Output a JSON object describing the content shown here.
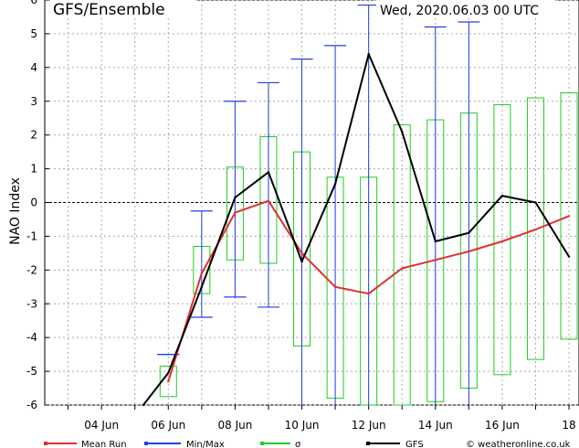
{
  "chart_data": {
    "type": "line",
    "title": "GFS/Ensemble",
    "timestamp": "Wed, 2020.06.03   00 UTC",
    "ylabel": "NAO Index",
    "ylim": [
      -6,
      6
    ],
    "yticks": [
      -6,
      -5,
      -4,
      -3,
      -2,
      -1,
      0,
      1,
      2,
      3,
      4,
      5,
      6
    ],
    "xlim": [
      2.3,
      18.3
    ],
    "xtick_values": [
      4,
      6,
      8,
      10,
      12,
      14,
      16,
      18
    ],
    "xtick_labels": [
      "04 Jun",
      "06 Jun",
      "08 Jun",
      "10 Jun",
      "12 Jun",
      "14 Jun",
      "16 Jun",
      "18"
    ],
    "grid": true,
    "legend_position": "bottom",
    "x": [
      3,
      4,
      5,
      6,
      7,
      8,
      9,
      10,
      11,
      12,
      13,
      14,
      15,
      16,
      17,
      18
    ],
    "series": [
      {
        "name": "Mean Run",
        "color": "#e03030",
        "x": [
          6,
          7,
          8,
          9,
          10,
          11,
          12,
          13,
          14,
          15,
          16,
          17,
          18
        ],
        "values": [
          -5.3,
          -2.1,
          -0.3,
          0.05,
          -1.5,
          -2.5,
          -2.7,
          -1.95,
          -1.7,
          -1.45,
          -1.15,
          -0.8,
          -0.4
        ]
      },
      {
        "name": "GFS",
        "color": "#000000",
        "x": [
          5.25,
          6,
          7,
          8,
          9,
          10,
          11,
          12,
          13,
          14,
          15,
          16,
          17,
          18
        ],
        "values": [
          -6,
          -5.05,
          -2.5,
          0.15,
          0.9,
          -1.75,
          0.55,
          4.4,
          2.1,
          -1.15,
          -0.9,
          0.2,
          0.0,
          -1.6
        ]
      }
    ],
    "minmax": {
      "name": "Min/Max",
      "color": "#2040e0",
      "x": [
        6,
        7,
        8,
        9,
        10,
        11,
        12,
        14,
        15
      ],
      "min": [
        -4.5,
        -3.4,
        -2.8,
        -3.1,
        -6,
        -6,
        -6,
        -6,
        -6
      ],
      "max": [
        -4.5,
        -0.25,
        3.0,
        3.55,
        4.25,
        4.65,
        5.85,
        5.2,
        5.35
      ]
    },
    "sigma": {
      "name": "σ",
      "color": "#22cc22",
      "x": [
        6,
        7,
        8,
        9,
        10,
        11,
        12,
        13,
        14,
        15,
        16,
        17,
        18
      ],
      "low": [
        -5.75,
        -2.7,
        -1.7,
        -1.8,
        -4.25,
        -5.8,
        -6,
        -6,
        -5.9,
        -5.5,
        -5.1,
        -4.65,
        -4.05
      ],
      "high": [
        -4.85,
        -1.3,
        1.05,
        1.95,
        1.5,
        0.75,
        0.75,
        2.3,
        2.45,
        2.65,
        2.9,
        3.1,
        3.25
      ]
    },
    "legend": [
      "Mean Run",
      "Min/Max",
      "σ",
      "GFS"
    ],
    "credit": "© weatheronline.co.uk"
  }
}
